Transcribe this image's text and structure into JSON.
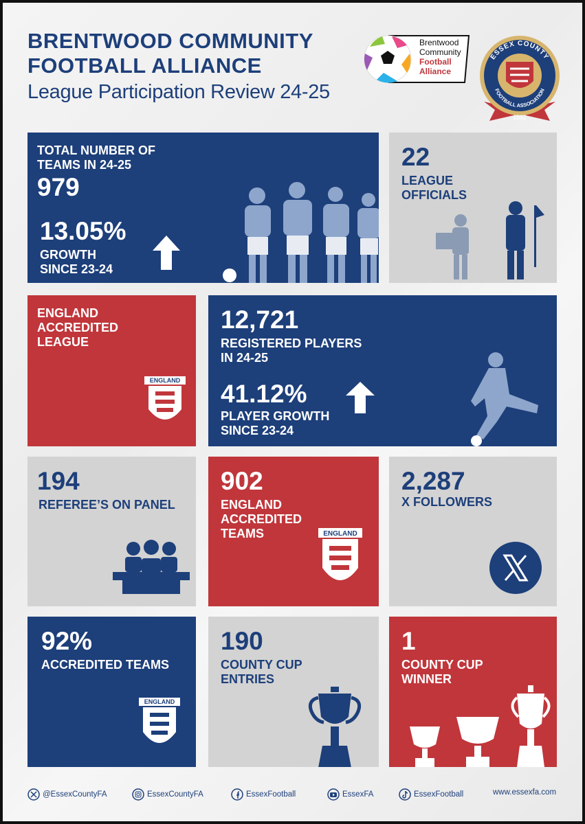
{
  "header": {
    "title": [
      "BRENTWOOD COMMUNITY",
      "FOOTBALL ALLIANCE"
    ],
    "subtitle": "League Participation Review 24-25",
    "league_logo": [
      "Brentwood",
      "Community",
      "Football",
      "Alliance"
    ],
    "county_badge": {
      "top": "ESSEX COUNTY",
      "bottom": "FOOTBALL ASSOCIATION",
      "year": "1882"
    }
  },
  "tiles": [
    {
      "label": [
        "TOTAL NUMBER OF",
        "TEAMS IN 24-25"
      ],
      "value": "979",
      "growth": "13.05%",
      "growth_label": [
        "GROWTH",
        "SINCE 23-24"
      ]
    },
    {
      "value": "22",
      "label": [
        "LEAGUE",
        "OFFICIALS"
      ]
    },
    {
      "label": [
        "ENGLAND",
        "ACCREDITED",
        "LEAGUE"
      ],
      "crest": "ENGLAND"
    },
    {
      "value": "12,721",
      "label": [
        "REGISTERED PLAYERS",
        "IN 24-25"
      ],
      "growth": "41.12%",
      "growth_label": [
        "PLAYER GROWTH",
        "SINCE 23-24"
      ]
    },
    {
      "value": "194",
      "label": [
        "REFEREE’S ON PANEL"
      ]
    },
    {
      "value": "902",
      "label": [
        "ENGLAND",
        "ACCREDITED",
        "TEAMS"
      ],
      "crest": "ENGLAND"
    },
    {
      "value": "2,287",
      "label": [
        "X FOLLOWERS"
      ]
    },
    {
      "value": "92%",
      "label": [
        "ACCREDITED TEAMS"
      ],
      "crest": "ENGLAND"
    },
    {
      "value": "190",
      "label": [
        "COUNTY CUP",
        "ENTRIES"
      ]
    },
    {
      "value": "1",
      "label": [
        "COUNTY CUP",
        "WINNER"
      ]
    }
  ],
  "footer": [
    "@EssexCountyFA",
    "EssexCountyFA",
    "EssexFootball",
    "EssexFA",
    "EssexFootball",
    "www.essexfa.com"
  ]
}
